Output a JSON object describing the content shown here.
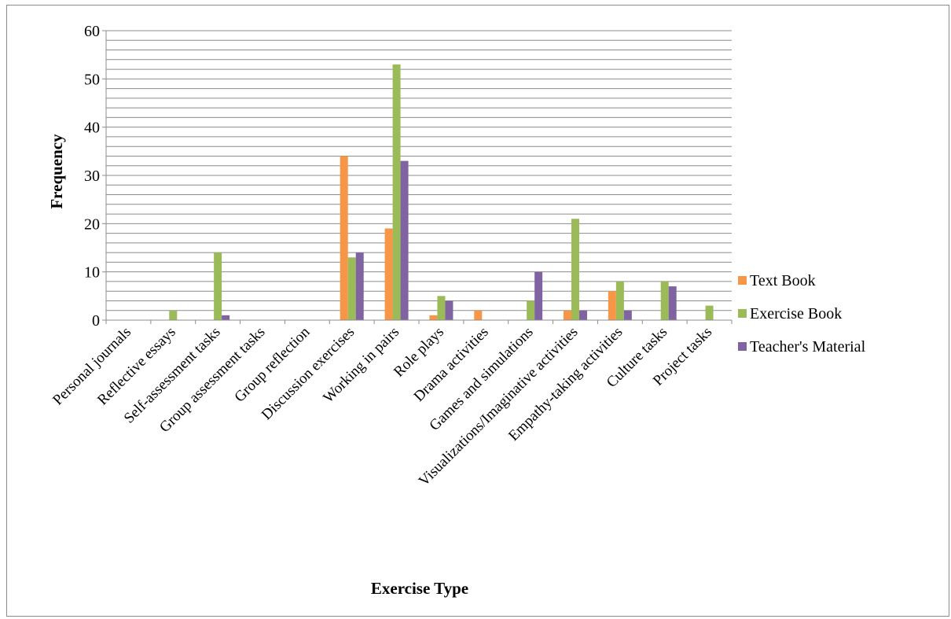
{
  "chart_data": {
    "type": "bar",
    "title": "",
    "xlabel": "Exercise Type",
    "ylabel": "Frequency",
    "ylim": [
      0,
      60
    ],
    "yticks": [
      0,
      10,
      20,
      30,
      40,
      50,
      60
    ],
    "minor_step": 2,
    "grid": true,
    "legend_position": "right",
    "categories": [
      "Personal journals",
      "Reflective essays",
      "Self-assessment tasks",
      "Group assessment tasks",
      "Group reflection",
      "Discussion exercises",
      "Working in pairs",
      "Role plays",
      "Drama activities",
      "Games and simulations",
      "Visualizations/Imaginative activities",
      "Empathy-taking activities",
      "Culture tasks",
      "Project tasks"
    ],
    "series": [
      {
        "name": "Text Book",
        "color": "#f79646",
        "values": [
          0,
          0,
          0,
          0,
          0,
          34,
          19,
          1,
          2,
          0,
          2,
          6,
          0,
          0
        ]
      },
      {
        "name": "Exercise Book",
        "color": "#9bbb59",
        "values": [
          0,
          2,
          14,
          0,
          0,
          13,
          53,
          5,
          0,
          4,
          21,
          8,
          8,
          3
        ]
      },
      {
        "name": "Teacher's Material",
        "color": "#8064a2",
        "values": [
          0,
          0,
          1,
          0,
          0,
          14,
          33,
          4,
          0,
          10,
          2,
          2,
          7,
          0
        ]
      }
    ]
  }
}
